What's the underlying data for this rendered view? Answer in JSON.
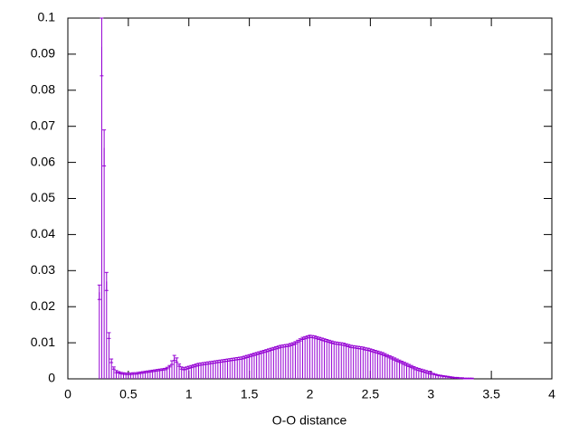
{
  "chart_data": {
    "type": "bar",
    "xlabel": "O-O distance",
    "color": "#9400d3",
    "xlim": [
      0,
      4
    ],
    "ylim": [
      0,
      0.1
    ],
    "xticks": [
      0,
      0.5,
      1,
      1.5,
      2,
      2.5,
      3,
      3.5,
      4
    ],
    "yticks": [
      0,
      0.01,
      0.02,
      0.03,
      0.04,
      0.05,
      0.06,
      0.07,
      0.08,
      0.09,
      0.1
    ],
    "x": [
      0.26,
      0.28,
      0.3,
      0.32,
      0.34,
      0.36,
      0.38,
      0.4,
      0.42,
      0.44,
      0.46,
      0.48,
      0.5,
      0.52,
      0.54,
      0.56,
      0.58,
      0.6,
      0.62,
      0.64,
      0.66,
      0.68,
      0.7,
      0.72,
      0.74,
      0.76,
      0.78,
      0.8,
      0.82,
      0.84,
      0.86,
      0.88,
      0.9,
      0.92,
      0.94,
      0.96,
      0.98,
      1.0,
      1.02,
      1.04,
      1.06,
      1.08,
      1.1,
      1.12,
      1.14,
      1.16,
      1.18,
      1.2,
      1.22,
      1.24,
      1.26,
      1.28,
      1.3,
      1.32,
      1.34,
      1.36,
      1.38,
      1.4,
      1.42,
      1.44,
      1.46,
      1.48,
      1.5,
      1.52,
      1.54,
      1.56,
      1.58,
      1.6,
      1.62,
      1.64,
      1.66,
      1.68,
      1.7,
      1.72,
      1.74,
      1.76,
      1.78,
      1.8,
      1.82,
      1.84,
      1.86,
      1.88,
      1.9,
      1.92,
      1.94,
      1.96,
      1.98,
      2.0,
      2.02,
      2.04,
      2.06,
      2.08,
      2.1,
      2.12,
      2.14,
      2.16,
      2.18,
      2.2,
      2.22,
      2.24,
      2.26,
      2.28,
      2.3,
      2.32,
      2.34,
      2.36,
      2.38,
      2.4,
      2.42,
      2.44,
      2.46,
      2.48,
      2.5,
      2.52,
      2.54,
      2.56,
      2.58,
      2.6,
      2.62,
      2.64,
      2.66,
      2.68,
      2.7,
      2.72,
      2.74,
      2.76,
      2.78,
      2.8,
      2.82,
      2.84,
      2.86,
      2.88,
      2.9,
      2.92,
      2.94,
      2.96,
      2.98,
      3.0,
      3.02,
      3.04,
      3.06,
      3.08,
      3.1,
      3.12,
      3.14,
      3.16,
      3.18,
      3.2,
      3.22,
      3.24,
      3.26,
      3.28,
      3.3,
      3.32,
      3.34
    ],
    "values": [
      0.024,
      0.092,
      0.064,
      0.027,
      0.012,
      0.005,
      0.003,
      0.002,
      0.0018,
      0.0016,
      0.0015,
      0.0014,
      0.0014,
      0.0014,
      0.0015,
      0.0015,
      0.0016,
      0.0017,
      0.0018,
      0.0019,
      0.002,
      0.0021,
      0.0022,
      0.0023,
      0.0024,
      0.0025,
      0.0026,
      0.0027,
      0.003,
      0.0035,
      0.0045,
      0.0058,
      0.0052,
      0.0038,
      0.003,
      0.0028,
      0.003,
      0.0032,
      0.0034,
      0.0036,
      0.0038,
      0.004,
      0.0041,
      0.0042,
      0.0043,
      0.0044,
      0.0045,
      0.0046,
      0.0047,
      0.0048,
      0.0049,
      0.005,
      0.0051,
      0.0052,
      0.0053,
      0.0054,
      0.0055,
      0.0056,
      0.0057,
      0.0058,
      0.006,
      0.0062,
      0.0064,
      0.0066,
      0.0068,
      0.007,
      0.0072,
      0.0074,
      0.0076,
      0.0078,
      0.008,
      0.0082,
      0.0084,
      0.0086,
      0.0088,
      0.009,
      0.0091,
      0.0092,
      0.0093,
      0.0095,
      0.0097,
      0.01,
      0.0104,
      0.0108,
      0.0112,
      0.0114,
      0.0116,
      0.0118,
      0.0117,
      0.0116,
      0.0114,
      0.0112,
      0.011,
      0.0108,
      0.0106,
      0.0104,
      0.0102,
      0.01,
      0.0099,
      0.0098,
      0.0097,
      0.0096,
      0.0094,
      0.0092,
      0.009,
      0.0089,
      0.0088,
      0.0087,
      0.0086,
      0.0085,
      0.0083,
      0.0082,
      0.008,
      0.0078,
      0.0076,
      0.0074,
      0.0072,
      0.007,
      0.0067,
      0.0064,
      0.0061,
      0.0058,
      0.0055,
      0.0052,
      0.0049,
      0.0046,
      0.0043,
      0.004,
      0.0037,
      0.0034,
      0.0031,
      0.0028,
      0.0026,
      0.0024,
      0.0022,
      0.002,
      0.0018,
      0.0016,
      0.0014,
      0.0012,
      0.001,
      0.0009,
      0.0008,
      0.0007,
      0.0006,
      0.0005,
      0.0004,
      0.0003,
      0.0003,
      0.0002,
      0.0002,
      0.0001,
      0.0001,
      0.0001,
      0.0001
    ],
    "errors": [
      0.002,
      0.008,
      0.005,
      0.0025,
      0.0008,
      0.0005,
      0.0003,
      0.0003,
      0.0002,
      0.0002,
      0.0002,
      0.0002,
      0.0002,
      0.0002,
      0.0002,
      0.0002,
      0.0002,
      0.0002,
      0.0002,
      0.0002,
      0.0002,
      0.0002,
      0.0002,
      0.0002,
      0.0002,
      0.0002,
      0.0002,
      0.0002,
      0.0002,
      0.0002,
      0.0005,
      0.0007,
      0.0006,
      0.0003,
      0.0003,
      0.0003,
      0.0003,
      0.0003,
      0.0003,
      0.0003,
      0.0003,
      0.0003,
      0.0003,
      0.0003,
      0.0003,
      0.0003,
      0.0003,
      0.0003,
      0.0003,
      0.0003,
      0.0003,
      0.0003,
      0.0003,
      0.0003,
      0.0003,
      0.0003,
      0.0003,
      0.0003,
      0.0003,
      0.0003,
      0.0003,
      0.0003,
      0.0003,
      0.0003,
      0.0003,
      0.0003,
      0.0003,
      0.0003,
      0.0003,
      0.0003,
      0.0003,
      0.0003,
      0.0003,
      0.0003,
      0.0003,
      0.0003,
      0.0003,
      0.0003,
      0.0003,
      0.0003,
      0.0003,
      0.0003,
      0.0003,
      0.0003,
      0.0003,
      0.0003,
      0.0003,
      0.0003,
      0.0003,
      0.0003,
      0.0003,
      0.0003,
      0.0003,
      0.0003,
      0.0003,
      0.0003,
      0.0003,
      0.0003,
      0.0003,
      0.0003,
      0.0003,
      0.0003,
      0.0003,
      0.0003,
      0.0003,
      0.0003,
      0.0003,
      0.0003,
      0.0003,
      0.0003,
      0.0003,
      0.0003,
      0.0003,
      0.0003,
      0.0003,
      0.0003,
      0.0003,
      0.0003,
      0.0003,
      0.0003,
      0.0003,
      0.0003,
      0.0003,
      0.0003,
      0.0003,
      0.0003,
      0.0003,
      0.0003,
      0.0003,
      0.0003,
      0.0003,
      0.0003,
      0.0003,
      0.0003,
      0.0003,
      0.0003,
      0.0003,
      0.0003,
      0.0001,
      0.0001,
      0.0001,
      0.0001,
      0.0001,
      0.0001,
      0.0001,
      0.0001,
      0.0001,
      0.0001,
      0.0001,
      0.0001,
      0.0001,
      0.0001,
      0.0001,
      0.0001,
      0.0001
    ]
  }
}
